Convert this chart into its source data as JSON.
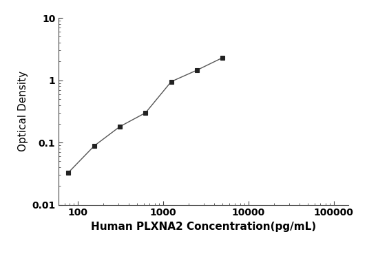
{
  "x": [
    78,
    156,
    312,
    625,
    1250,
    2500,
    5000
  ],
  "y": [
    0.033,
    0.088,
    0.18,
    0.3,
    0.95,
    1.45,
    2.3
  ],
  "xlim": [
    60,
    150000
  ],
  "ylim": [
    0.01,
    10
  ],
  "xlabel": "Human PLXNA2 Concentration(pg/mL)",
  "ylabel": "Optical Density",
  "line_color": "#555555",
  "marker": "s",
  "marker_color": "#222222",
  "marker_size": 5,
  "background_color": "#ffffff",
  "xlabel_fontsize": 11,
  "ylabel_fontsize": 11,
  "tick_fontsize": 10,
  "xticks": [
    100,
    1000,
    10000,
    100000
  ],
  "yticks": [
    0.01,
    0.1,
    1,
    10
  ]
}
